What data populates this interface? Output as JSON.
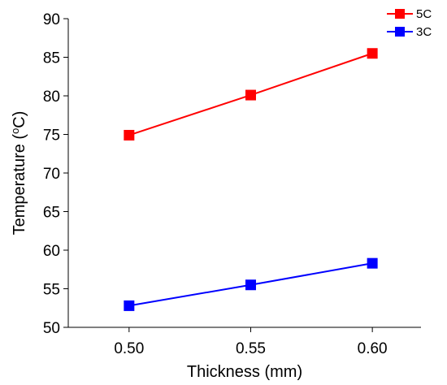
{
  "chart_data": {
    "type": "line",
    "x": [
      0.5,
      0.55,
      0.6
    ],
    "x_tick_labels": [
      "0.50",
      "0.55",
      "0.60"
    ],
    "xlim": [
      0.475,
      0.62
    ],
    "ylim": [
      50,
      90
    ],
    "y_ticks": [
      50,
      55,
      60,
      65,
      70,
      75,
      80,
      85,
      90
    ],
    "xlabel": "Thickness (mm)",
    "ylabel_main": "Temperature (",
    "ylabel_sup": "o",
    "ylabel_end": "C)",
    "grid": false,
    "legend_position": "top-right",
    "series": [
      {
        "name": "5C",
        "color": "#ff0000",
        "marker": "square",
        "values": [
          74.9,
          80.1,
          85.5
        ]
      },
      {
        "name": "3C",
        "color": "#0000ff",
        "marker": "square",
        "values": [
          52.8,
          55.5,
          58.3
        ]
      }
    ]
  }
}
